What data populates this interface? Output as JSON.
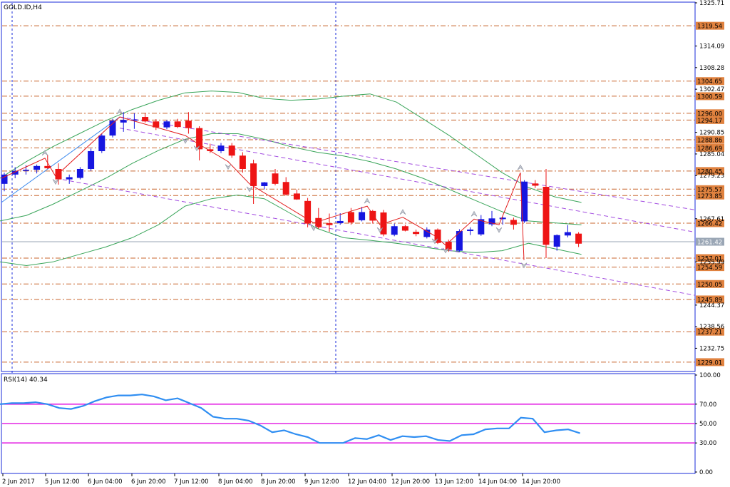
{
  "chart_data": [
    {
      "type": "candlestick",
      "title": "GOLD.ID,H4",
      "y_ticks": [
        "1325.71",
        "1314.09",
        "1308.28",
        "1302.47",
        "1290.85",
        "1285.04",
        "1279.23",
        "1267.61",
        "1255.99",
        "1244.37",
        "1238.56",
        "1232.75"
      ],
      "y_tick_values": [
        1325.71,
        1314.09,
        1308.28,
        1302.47,
        1290.85,
        1285.04,
        1279.23,
        1267.61,
        1255.99,
        1244.37,
        1238.56,
        1232.75
      ],
      "ylim": [
        1226.5,
        1325.71
      ],
      "x_labels": [
        "2 Jun 2017",
        "5 Jun 12:00",
        "6 Jun 04:00",
        "6 Jun 20:00",
        "7 Jun 12:00",
        "8 Jun 04:00",
        "8 Jun 20:00",
        "9 Jun 12:00",
        "12 Jun 04:00",
        "12 Jun 20:00",
        "13 Jun 12:00",
        "14 Jun 04:00",
        "14 Jun 20:00"
      ],
      "levels": [
        "1319.54",
        "1304.65",
        "1300.59",
        "1296.00",
        "1294.17",
        "1288.86",
        "1286.69",
        "1280.45",
        "1275.57",
        "1273.85",
        "1266.42",
        "1257.01",
        "1254.59",
        "1250.05",
        "1245.89",
        "1237.21",
        "1229.01"
      ],
      "level_values": [
        1319.54,
        1304.65,
        1300.59,
        1296.0,
        1294.17,
        1288.86,
        1286.69,
        1280.45,
        1275.57,
        1273.85,
        1266.42,
        1257.01,
        1254.59,
        1250.05,
        1245.89,
        1237.21,
        1229.01
      ],
      "current_price": "1261.42",
      "current_price_value": 1261.42,
      "candles": [
        {
          "o": 1277.0,
          "h": 1280.0,
          "l": 1275.0,
          "c": 1279.5
        },
        {
          "o": 1279.5,
          "h": 1281.5,
          "l": 1278.5,
          "c": 1280.5
        },
        {
          "o": 1280.5,
          "h": 1282.0,
          "l": 1279.5,
          "c": 1280.8
        },
        {
          "o": 1280.8,
          "h": 1282.2,
          "l": 1279.8,
          "c": 1281.8
        },
        {
          "o": 1281.8,
          "h": 1284.8,
          "l": 1281.0,
          "c": 1281.2
        },
        {
          "o": 1281.0,
          "h": 1282.5,
          "l": 1276.8,
          "c": 1278.2
        },
        {
          "o": 1278.2,
          "h": 1279.5,
          "l": 1277.0,
          "c": 1278.8
        },
        {
          "o": 1278.6,
          "h": 1281.5,
          "l": 1278.2,
          "c": 1281.0
        },
        {
          "o": 1281.0,
          "h": 1286.5,
          "l": 1280.5,
          "c": 1285.8
        },
        {
          "o": 1285.8,
          "h": 1290.5,
          "l": 1285.3,
          "c": 1290.0
        },
        {
          "o": 1290.0,
          "h": 1294.5,
          "l": 1289.5,
          "c": 1294.0
        },
        {
          "o": 1293.5,
          "h": 1296.3,
          "l": 1291.0,
          "c": 1294.2
        },
        {
          "o": 1294.0,
          "h": 1296.0,
          "l": 1291.8,
          "c": 1294.3
        },
        {
          "o": 1295.0,
          "h": 1296.0,
          "l": 1293.5,
          "c": 1293.8
        },
        {
          "o": 1293.8,
          "h": 1294.4,
          "l": 1291.5,
          "c": 1292.2
        },
        {
          "o": 1292.2,
          "h": 1294.2,
          "l": 1291.7,
          "c": 1293.8
        },
        {
          "o": 1293.8,
          "h": 1294.5,
          "l": 1292.0,
          "c": 1292.3
        },
        {
          "o": 1294.0,
          "h": 1296.3,
          "l": 1290.5,
          "c": 1292.0
        },
        {
          "o": 1292.0,
          "h": 1292.5,
          "l": 1283.3,
          "c": 1286.3
        },
        {
          "o": 1286.3,
          "h": 1287.8,
          "l": 1285.3,
          "c": 1285.8
        },
        {
          "o": 1285.8,
          "h": 1288.0,
          "l": 1285.3,
          "c": 1287.3
        },
        {
          "o": 1287.3,
          "h": 1288.0,
          "l": 1284.0,
          "c": 1284.6
        },
        {
          "o": 1284.6,
          "h": 1285.5,
          "l": 1280.0,
          "c": 1281.0
        },
        {
          "o": 1282.5,
          "h": 1283.5,
          "l": 1271.6,
          "c": 1276.4
        },
        {
          "o": 1276.4,
          "h": 1277.5,
          "l": 1275.5,
          "c": 1277.4
        },
        {
          "o": 1279.8,
          "h": 1281.0,
          "l": 1276.6,
          "c": 1277.0
        },
        {
          "o": 1277.5,
          "h": 1278.8,
          "l": 1273.8,
          "c": 1274.1
        },
        {
          "o": 1274.4,
          "h": 1275.5,
          "l": 1272.7,
          "c": 1272.8
        },
        {
          "o": 1272.4,
          "h": 1273.2,
          "l": 1265.3,
          "c": 1266.3
        },
        {
          "o": 1267.8,
          "h": 1270.5,
          "l": 1264.9,
          "c": 1265.3
        },
        {
          "o": 1266.4,
          "h": 1269.0,
          "l": 1264.1,
          "c": 1265.9
        },
        {
          "o": 1266.4,
          "h": 1269.1,
          "l": 1266.0,
          "c": 1267.0
        },
        {
          "o": 1269.4,
          "h": 1270.5,
          "l": 1266.0,
          "c": 1266.6
        },
        {
          "o": 1267.2,
          "h": 1270.8,
          "l": 1266.9,
          "c": 1269.4
        },
        {
          "o": 1269.7,
          "h": 1270.0,
          "l": 1266.3,
          "c": 1267.1
        },
        {
          "o": 1269.3,
          "h": 1270.0,
          "l": 1262.9,
          "c": 1263.4
        },
        {
          "o": 1263.3,
          "h": 1266.3,
          "l": 1262.9,
          "c": 1265.6
        },
        {
          "o": 1265.6,
          "h": 1266.0,
          "l": 1264.2,
          "c": 1264.4
        },
        {
          "o": 1264.1,
          "h": 1264.7,
          "l": 1262.9,
          "c": 1263.5
        },
        {
          "o": 1262.7,
          "h": 1265.3,
          "l": 1262.3,
          "c": 1264.7
        },
        {
          "o": 1264.7,
          "h": 1265.0,
          "l": 1260.8,
          "c": 1261.1
        },
        {
          "o": 1261.4,
          "h": 1262.0,
          "l": 1258.7,
          "c": 1259.3
        },
        {
          "o": 1259.0,
          "h": 1264.8,
          "l": 1258.7,
          "c": 1264.3
        },
        {
          "o": 1264.3,
          "h": 1265.3,
          "l": 1263.2,
          "c": 1264.7
        },
        {
          "o": 1263.4,
          "h": 1268.6,
          "l": 1263.0,
          "c": 1267.5
        },
        {
          "o": 1266.1,
          "h": 1269.7,
          "l": 1265.6,
          "c": 1267.7
        },
        {
          "o": 1267.5,
          "h": 1268.1,
          "l": 1266.0,
          "c": 1267.9
        },
        {
          "o": 1267.3,
          "h": 1267.9,
          "l": 1264.7,
          "c": 1266.0
        },
        {
          "o": 1266.9,
          "h": 1278.0,
          "l": 1266.5,
          "c": 1277.6
        },
        {
          "o": 1277.1,
          "h": 1278.0,
          "l": 1275.9,
          "c": 1276.5
        },
        {
          "o": 1276.2,
          "h": 1281.0,
          "l": 1257.0,
          "c": 1260.6
        },
        {
          "o": 1260.1,
          "h": 1263.4,
          "l": 1259.0,
          "c": 1263.2
        },
        {
          "o": 1263.1,
          "h": 1265.9,
          "l": 1262.6,
          "c": 1264.0
        },
        {
          "o": 1263.6,
          "h": 1264.0,
          "l": 1260.0,
          "c": 1260.9
        }
      ],
      "bollinger": {
        "upper": [
          1278.5,
          1283.0,
          1287.0,
          1290.5,
          1294.0,
          1297.0,
          1299.5,
          1301.5,
          1302.0,
          1301.6,
          1300.0,
          1299.5,
          1299.8,
          1300.6,
          1301.2,
          1299.0,
          1294.5,
          1290.0,
          1285.0,
          1280.0,
          1276.0,
          1273.5,
          1272.0
        ],
        "middle": [
          1267.0,
          1268.5,
          1271.5,
          1275.0,
          1278.5,
          1282.5,
          1286.0,
          1289.0,
          1290.5,
          1290.5,
          1289.0,
          1287.0,
          1285.5,
          1284.5,
          1283.0,
          1281.0,
          1278.5,
          1275.5,
          1272.5,
          1269.5,
          1267.0,
          1266.5,
          1266.0
        ],
        "lower": [
          1256.0,
          1255.0,
          1256.0,
          1258.0,
          1260.0,
          1262.5,
          1266.0,
          1271.0,
          1273.0,
          1274.0,
          1273.0,
          1269.0,
          1265.0,
          1262.5,
          1261.8,
          1261.0,
          1260.0,
          1259.0,
          1258.5,
          1259.0,
          1261.0,
          1259.5,
          1258.0
        ]
      },
      "zigzag": [
        1278.5,
        1283.9,
        1279.0,
        1295.0,
        1290.0,
        1288.0,
        1283.0,
        1277.0,
        1266.5,
        1271.0,
        1266.0,
        1268.0,
        1263.0,
        1260.5,
        1267.5,
        1266.0,
        1280.0,
        1256.5
      ],
      "channel_upper": [
        1295.0,
        1270.0
      ],
      "channel_mid": [
        1292.0,
        1264.0
      ],
      "channel_lower": [
        1278.5,
        1247.0
      ]
    },
    {
      "type": "line",
      "title": "RSI(14) 40.34",
      "y_ticks": [
        "100.00",
        "70.00",
        "50.00",
        "30.00",
        "0.00"
      ],
      "y_tick_values": [
        100,
        70,
        50,
        30,
        0
      ],
      "levels": [
        70,
        50,
        30
      ],
      "ylim": [
        0,
        100
      ],
      "rsi": [
        70,
        71,
        71,
        72,
        70,
        66,
        65,
        68,
        73,
        77,
        79,
        79,
        80,
        78,
        74,
        76,
        71,
        66,
        57,
        55,
        55,
        53,
        48,
        41,
        43,
        39,
        36,
        30,
        30,
        30,
        35,
        34,
        38,
        33,
        37,
        36,
        37,
        33,
        32,
        38,
        39,
        44,
        45,
        45,
        56,
        55,
        41,
        43,
        44,
        40
      ]
    }
  ]
}
